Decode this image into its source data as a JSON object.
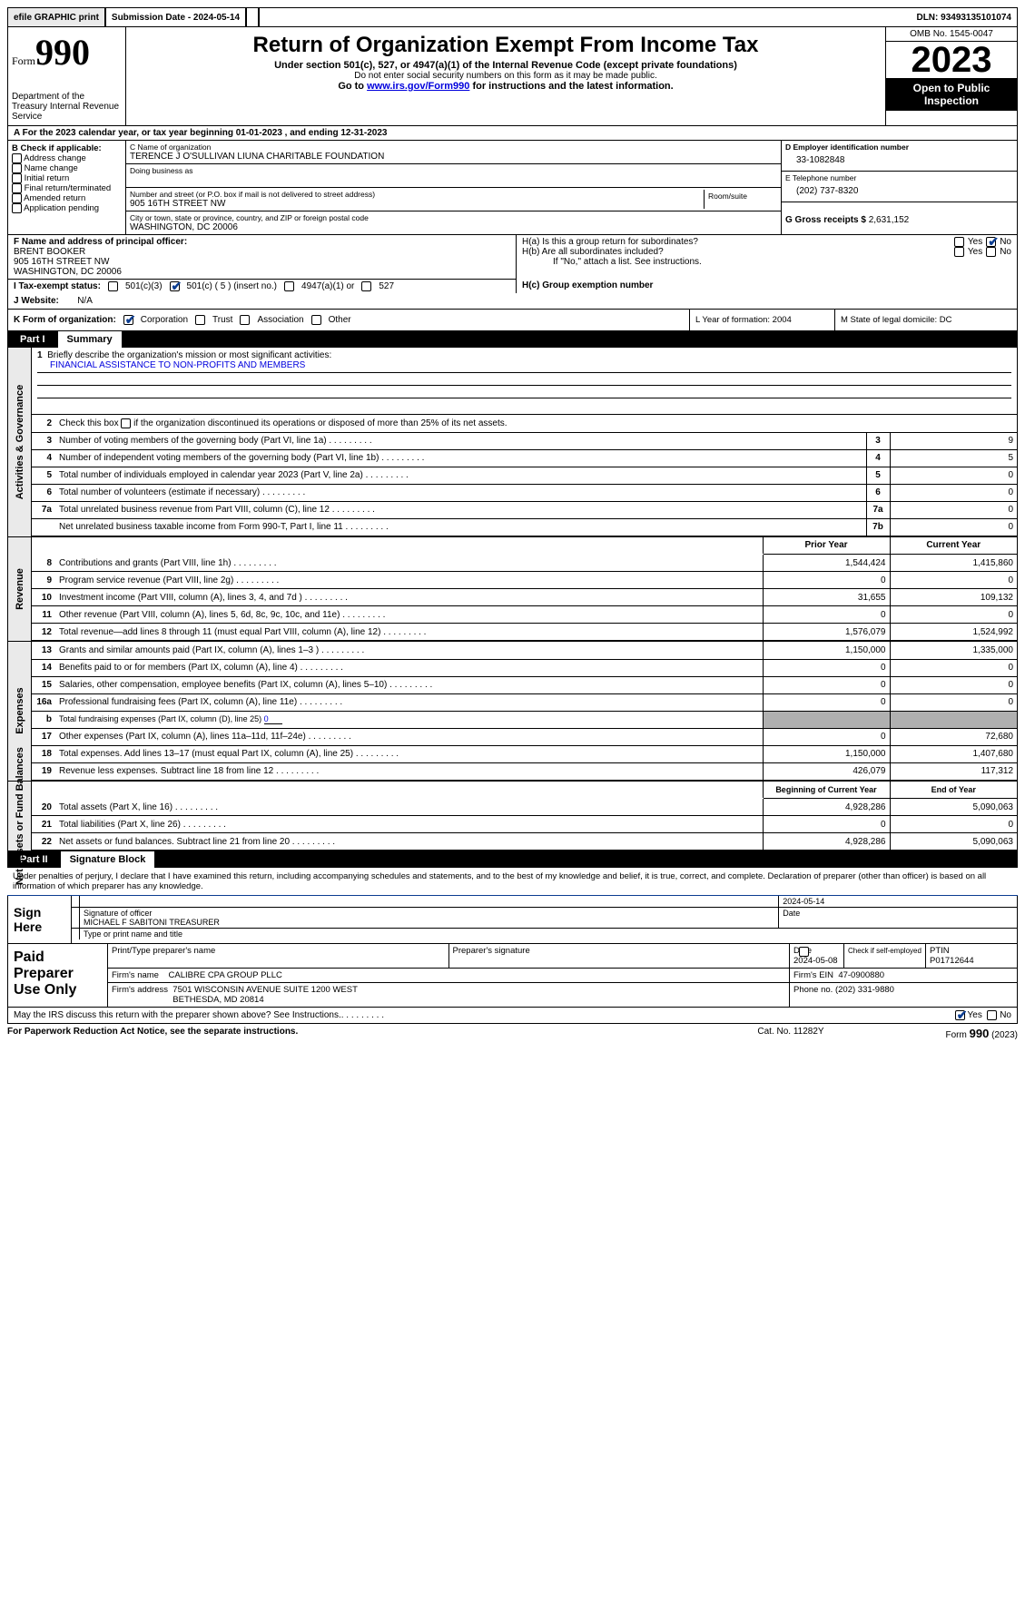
{
  "topbar": {
    "efile": "efile GRAPHIC print",
    "submission_label": "Submission Date - 2024-05-14",
    "dln_label": "DLN: 93493135101074"
  },
  "header": {
    "form_label": "Form",
    "form_number": "990",
    "dept": "Department of the Treasury Internal Revenue Service",
    "title": "Return of Organization Exempt From Income Tax",
    "sub1": "Under section 501(c), 527, or 4947(a)(1) of the Internal Revenue Code (except private foundations)",
    "sub2": "Do not enter social security numbers on this form as it may be made public.",
    "sub3_pre": "Go to ",
    "sub3_link": "www.irs.gov/Form990",
    "sub3_post": " for instructions and the latest information.",
    "omb": "OMB No. 1545-0047",
    "year": "2023",
    "open_pub": "Open to Public Inspection"
  },
  "row_a": "For the 2023 calendar year, or tax year beginning 01-01-2023   , and ending 12-31-2023",
  "col_b": {
    "label": "B Check if applicable:",
    "items": [
      "Address change",
      "Name change",
      "Initial return",
      "Final return/terminated",
      "Amended return",
      "Application pending"
    ]
  },
  "col_c": {
    "name_lab": "C Name of organization",
    "name": "TERENCE J O'SULLIVAN LIUNA CHARITABLE FOUNDATION",
    "dba_lab": "Doing business as",
    "street_lab": "Number and street (or P.O. box if mail is not delivered to street address)",
    "room_lab": "Room/suite",
    "street": "905 16TH STREET NW",
    "city_lab": "City or town, state or province, country, and ZIP or foreign postal code",
    "city": "WASHINGTON, DC  20006"
  },
  "col_de": {
    "d_lab": "D Employer identification number",
    "d_val": "33-1082848",
    "e_lab": "E Telephone number",
    "e_val": "(202) 737-8320",
    "g_lab": "G Gross receipts $",
    "g_val": "2,631,152"
  },
  "row_f": {
    "lab": "F  Name and address of principal officer:",
    "name": "BRENT BOOKER",
    "street": "905 16TH STREET NW",
    "city": "WASHINGTON, DC  20006"
  },
  "row_h": {
    "a_lab": "H(a)  Is this a group return for subordinates?",
    "b_lab": "H(b)  Are all subordinates included?",
    "b_note": "If \"No,\" attach a list. See instructions.",
    "c_lab": "H(c)  Group exemption number",
    "yes": "Yes",
    "no": "No"
  },
  "row_i": {
    "lab": "I   Tax-exempt status:",
    "o1": "501(c)(3)",
    "o2": "501(c) ( 5 ) (insert no.)",
    "o3": "4947(a)(1) or",
    "o4": "527"
  },
  "row_j": {
    "lab": "J   Website:",
    "val": "N/A"
  },
  "row_k": {
    "lab": "K Form of organization:",
    "o1": "Corporation",
    "o2": "Trust",
    "o3": "Association",
    "o4": "Other"
  },
  "row_l": "L Year of formation: 2004",
  "row_m": "M State of legal domicile: DC",
  "parts": {
    "p1": "Part I",
    "p1t": "Summary",
    "p2": "Part II",
    "p2t": "Signature Block"
  },
  "vtabs": {
    "gov": "Activities & Governance",
    "rev": "Revenue",
    "exp": "Expenses",
    "net": "Net Assets or Fund Balances"
  },
  "summary": {
    "l1_lab": "Briefly describe the organization's mission or most significant activities:",
    "l1_val": "FINANCIAL ASSISTANCE TO NON-PROFITS AND MEMBERS",
    "l2_lab": "Check this box ",
    "l2_post": " if the organization discontinued its operations or disposed of more than 25% of its net assets.",
    "rows": [
      {
        "n": "3",
        "t": "Number of voting members of the governing body (Part VI, line 1a)",
        "box": "3",
        "v": "9"
      },
      {
        "n": "4",
        "t": "Number of independent voting members of the governing body (Part VI, line 1b)",
        "box": "4",
        "v": "5"
      },
      {
        "n": "5",
        "t": "Total number of individuals employed in calendar year 2023 (Part V, line 2a)",
        "box": "5",
        "v": "0"
      },
      {
        "n": "6",
        "t": "Total number of volunteers (estimate if necessary)",
        "box": "6",
        "v": "0"
      },
      {
        "n": "7a",
        "t": "Total unrelated business revenue from Part VIII, column (C), line 12",
        "box": "7a",
        "v": "0"
      },
      {
        "n": "",
        "t": "Net unrelated business taxable income from Form 990-T, Part I, line 11",
        "box": "7b",
        "v": "0"
      }
    ],
    "col_hdr": {
      "prior": "Prior Year",
      "curr": "Current Year",
      "beg": "Beginning of Current Year",
      "end": "End of Year"
    },
    "rev_rows": [
      {
        "n": "8",
        "t": "Contributions and grants (Part VIII, line 1h)",
        "p": "1,544,424",
        "c": "1,415,860"
      },
      {
        "n": "9",
        "t": "Program service revenue (Part VIII, line 2g)",
        "p": "0",
        "c": "0"
      },
      {
        "n": "10",
        "t": "Investment income (Part VIII, column (A), lines 3, 4, and 7d )",
        "p": "31,655",
        "c": "109,132"
      },
      {
        "n": "11",
        "t": "Other revenue (Part VIII, column (A), lines 5, 6d, 8c, 9c, 10c, and 11e)",
        "p": "0",
        "c": "0"
      },
      {
        "n": "12",
        "t": "Total revenue—add lines 8 through 11 (must equal Part VIII, column (A), line 12)",
        "p": "1,576,079",
        "c": "1,524,992"
      }
    ],
    "exp_rows": [
      {
        "n": "13",
        "t": "Grants and similar amounts paid (Part IX, column (A), lines 1–3 )",
        "p": "1,150,000",
        "c": "1,335,000"
      },
      {
        "n": "14",
        "t": "Benefits paid to or for members (Part IX, column (A), line 4)",
        "p": "0",
        "c": "0"
      },
      {
        "n": "15",
        "t": "Salaries, other compensation, employee benefits (Part IX, column (A), lines 5–10)",
        "p": "0",
        "c": "0"
      },
      {
        "n": "16a",
        "t": "Professional fundraising fees (Part IX, column (A), line 11e)",
        "p": "0",
        "c": "0"
      }
    ],
    "exp_b": {
      "n": "b",
      "t": "Total fundraising expenses (Part IX, column (D), line 25)",
      "u": "0"
    },
    "exp_rows2": [
      {
        "n": "17",
        "t": "Other expenses (Part IX, column (A), lines 11a–11d, 11f–24e)",
        "p": "0",
        "c": "72,680"
      },
      {
        "n": "18",
        "t": "Total expenses. Add lines 13–17 (must equal Part IX, column (A), line 25)",
        "p": "1,150,000",
        "c": "1,407,680"
      },
      {
        "n": "19",
        "t": "Revenue less expenses. Subtract line 18 from line 12",
        "p": "426,079",
        "c": "117,312"
      }
    ],
    "net_rows": [
      {
        "n": "20",
        "t": "Total assets (Part X, line 16)",
        "p": "4,928,286",
        "c": "5,090,063"
      },
      {
        "n": "21",
        "t": "Total liabilities (Part X, line 26)",
        "p": "0",
        "c": "0"
      },
      {
        "n": "22",
        "t": "Net assets or fund balances. Subtract line 21 from line 20",
        "p": "4,928,286",
        "c": "5,090,063"
      }
    ]
  },
  "sig_decl": "Under penalties of perjury, I declare that I have examined this return, including accompanying schedules and statements, and to the best of my knowledge and belief, it is true, correct, and complete. Declaration of preparer (other than officer) is based on all information of which preparer has any knowledge.",
  "sign": {
    "lab": "Sign Here",
    "date": "2024-05-14",
    "officer_lab": "Signature of officer",
    "officer": "MICHAEL F SABITONI TREASURER",
    "type_lab": "Type or print name and title",
    "date_lab": "Date"
  },
  "paid": {
    "lab": "Paid Preparer Use Only",
    "col_name": "Print/Type preparer's name",
    "col_sig": "Preparer's signature",
    "col_date": "Date",
    "date": "2024-05-08",
    "self_lab": "Check        if self-employed",
    "ptin_lab": "PTIN",
    "ptin": "P01712644",
    "firm_name_lab": "Firm's name",
    "firm_name": "CALIBRE CPA GROUP PLLC",
    "firm_ein_lab": "Firm's EIN",
    "firm_ein": "47-0900880",
    "firm_addr_lab": "Firm's address",
    "firm_addr": "7501 WISCONSIN AVENUE SUITE 1200 WEST\nBETHESDA, MD  20814",
    "phone_lab": "Phone no.",
    "phone": "(202) 331-9880"
  },
  "discuss": {
    "q": "May the IRS discuss this return with the preparer shown above? See Instructions.",
    "yes": "Yes",
    "no": "No"
  },
  "footer": {
    "l": "For Paperwork Reduction Act Notice, see the separate instructions.",
    "c": "Cat. No. 11282Y",
    "r": "Form 990 (2023)"
  }
}
